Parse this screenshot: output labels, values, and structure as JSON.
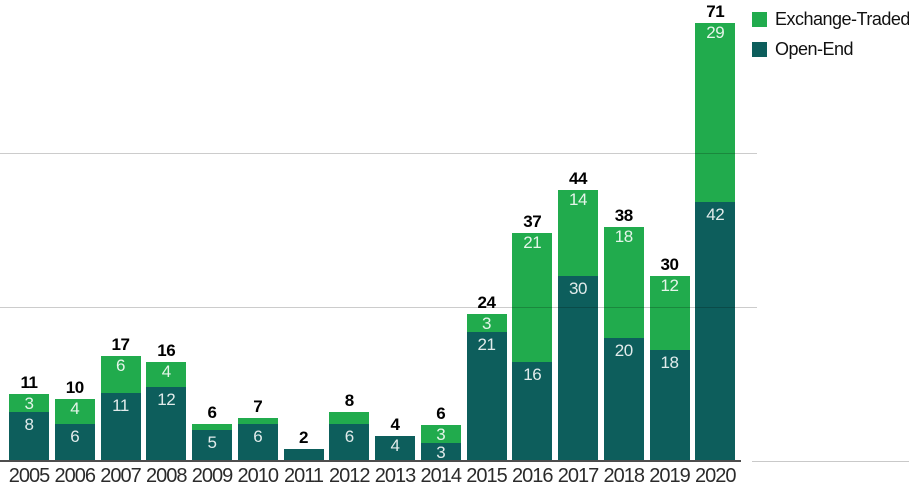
{
  "chart_data": {
    "type": "bar",
    "stacked": true,
    "title": "",
    "xlabel": "",
    "ylabel": "",
    "categories": [
      "2005",
      "2006",
      "2007",
      "2008",
      "2009",
      "2010",
      "2011",
      "2012",
      "2013",
      "2014",
      "2015",
      "2016",
      "2017",
      "2018",
      "2019",
      "2020"
    ],
    "series": [
      {
        "name": "Open-End",
        "color": "#0D5E5C",
        "values": [
          8,
          6,
          11,
          12,
          5,
          6,
          2,
          6,
          4,
          3,
          21,
          16,
          30,
          20,
          18,
          42
        ],
        "labels": [
          "8",
          "6",
          "11",
          "12",
          "5",
          "6",
          "",
          "6",
          "4",
          "3",
          "21",
          "16",
          "30",
          "20",
          "18",
          "42"
        ]
      },
      {
        "name": "Exchange-Traded",
        "color": "#21AB4D",
        "values": [
          3,
          4,
          6,
          4,
          1,
          1,
          0,
          2,
          0,
          3,
          3,
          21,
          14,
          18,
          12,
          29
        ],
        "labels": [
          "3",
          "4",
          "6",
          "4",
          "",
          "",
          "",
          "",
          "",
          "3",
          "3",
          "21",
          "14",
          "18",
          "12",
          "29"
        ]
      }
    ],
    "totals": [
      11,
      10,
      17,
      16,
      6,
      7,
      2,
      8,
      4,
      6,
      24,
      37,
      44,
      38,
      30,
      71
    ],
    "total_labels": [
      "11",
      "10",
      "17",
      "16",
      "6",
      "7",
      "2",
      "8",
      "4",
      "6",
      "24",
      "37",
      "44",
      "38",
      "30",
      "71"
    ],
    "ylim": [
      0,
      75
    ],
    "gridline_values": [
      25,
      50
    ],
    "grid": true,
    "y_axis_labels_visible": false,
    "legend_position": "top-right",
    "legend": [
      {
        "label": "Exchange-Traded",
        "color": "#21AB4D"
      },
      {
        "label": "Open-End",
        "color": "#0D5E5C"
      }
    ]
  }
}
